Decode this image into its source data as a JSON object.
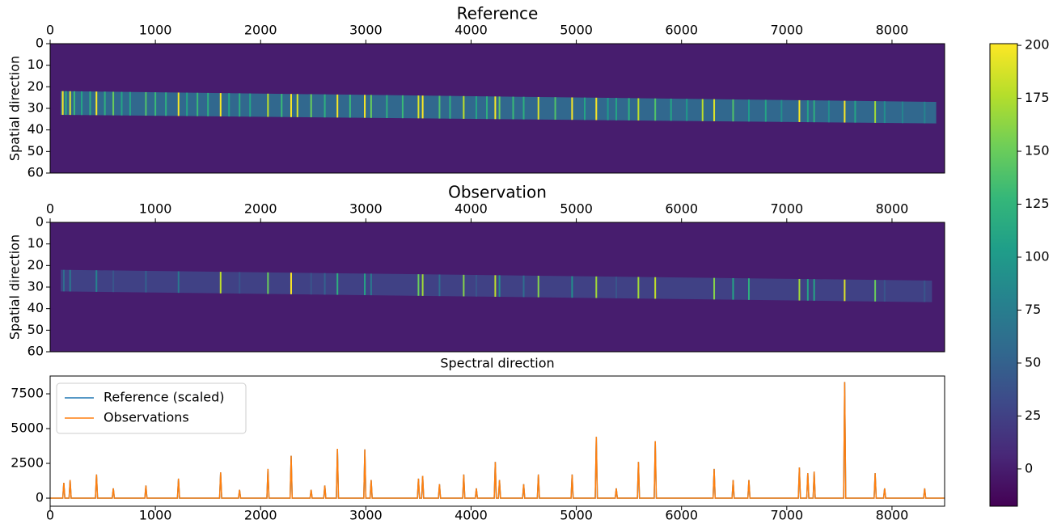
{
  "chart_data": [
    {
      "type": "image",
      "title": "Reference",
      "ylabel": "Spatial direction",
      "xlim": [
        0,
        8500
      ],
      "ylim": [
        60,
        0
      ],
      "xticks": [
        0,
        1000,
        2000,
        3000,
        4000,
        5000,
        6000,
        7000,
        8000
      ],
      "yticks": [
        0,
        10,
        20,
        30,
        40,
        50,
        60
      ],
      "background": 0,
      "band": {
        "x": [
          100,
          8420
        ],
        "top": [
          22,
          27
        ],
        "bottom": [
          33,
          37
        ],
        "level": 55
      },
      "lines": {
        "x": [
          120,
          150,
          190,
          230,
          300,
          380,
          440,
          520,
          600,
          680,
          760,
          910,
          1000,
          1100,
          1220,
          1300,
          1400,
          1500,
          1620,
          1700,
          1800,
          1900,
          2070,
          2200,
          2290,
          2350,
          2480,
          2610,
          2730,
          2850,
          2990,
          3050,
          3200,
          3350,
          3500,
          3540,
          3700,
          3800,
          3930,
          4050,
          4150,
          4230,
          4270,
          4400,
          4500,
          4640,
          4800,
          4960,
          5080,
          5190,
          5300,
          5380,
          5500,
          5590,
          5750,
          5900,
          6050,
          6200,
          6310,
          6490,
          6640,
          6800,
          6950,
          7120,
          7200,
          7260,
          7400,
          7550,
          7650,
          7840,
          7930,
          8100,
          8310
        ],
        "values": [
          200,
          120,
          190,
          130,
          110,
          120,
          200,
          120,
          150,
          110,
          110,
          140,
          130,
          120,
          200,
          110,
          130,
          120,
          200,
          110,
          120,
          110,
          180,
          130,
          200,
          190,
          150,
          120,
          200,
          130,
          200,
          150,
          120,
          130,
          190,
          200,
          140,
          120,
          180,
          110,
          120,
          200,
          150,
          130,
          120,
          190,
          140,
          200,
          110,
          200,
          100,
          110,
          120,
          180,
          140,
          110,
          100,
          180,
          190,
          140,
          100,
          110,
          90,
          200,
          110,
          120,
          90,
          200,
          110,
          170,
          90,
          80,
          80
        ]
      }
    },
    {
      "type": "image",
      "title": "Observation",
      "xlabel": "Spectral direction",
      "ylabel": "Spatial direction",
      "xlim": [
        0,
        8500
      ],
      "ylim": [
        60,
        0
      ],
      "xticks": [
        0,
        1000,
        2000,
        3000,
        4000,
        5000,
        6000,
        7000,
        8000
      ],
      "yticks": [
        0,
        10,
        20,
        30,
        40,
        50,
        60
      ],
      "background": 0,
      "band": {
        "x": [
          100,
          8380
        ],
        "top": [
          22,
          27
        ],
        "bottom": [
          32,
          37
        ],
        "level": 25
      },
      "lines": {
        "x": [
          130,
          190,
          440,
          600,
          910,
          1220,
          1620,
          1800,
          2070,
          2290,
          2480,
          2610,
          2730,
          2990,
          3050,
          3500,
          3540,
          3700,
          3930,
          4050,
          4230,
          4270,
          4500,
          4640,
          4960,
          5190,
          5380,
          5590,
          5750,
          6310,
          6490,
          6640,
          7120,
          7200,
          7260,
          7550,
          7840,
          7930,
          8310
        ],
        "values": [
          60,
          70,
          80,
          40,
          50,
          70,
          180,
          40,
          150,
          200,
          40,
          50,
          120,
          110,
          70,
          150,
          170,
          60,
          160,
          40,
          180,
          90,
          60,
          160,
          90,
          170,
          40,
          170,
          180,
          160,
          110,
          120,
          170,
          110,
          110,
          190,
          150,
          40,
          40
        ]
      }
    },
    {
      "type": "line",
      "xlim": [
        0,
        8500
      ],
      "ylim": [
        -580,
        8780
      ],
      "xticks": [
        0,
        1000,
        2000,
        3000,
        4000,
        5000,
        6000,
        7000,
        8000
      ],
      "yticks": [
        0,
        2500,
        5000,
        7500
      ],
      "legend": "upper left",
      "x": [
        0,
        120,
        130,
        140,
        180,
        190,
        200,
        430,
        440,
        450,
        590,
        600,
        610,
        900,
        910,
        920,
        1210,
        1220,
        1230,
        1610,
        1620,
        1630,
        1790,
        1800,
        1810,
        2060,
        2070,
        2080,
        2280,
        2290,
        2300,
        2470,
        2480,
        2490,
        2600,
        2610,
        2620,
        2720,
        2730,
        2740,
        2980,
        2990,
        3000,
        3040,
        3050,
        3060,
        3490,
        3500,
        3510,
        3530,
        3540,
        3550,
        3690,
        3700,
        3710,
        3920,
        3930,
        3940,
        4040,
        4050,
        4060,
        4220,
        4230,
        4240,
        4260,
        4270,
        4280,
        4490,
        4500,
        4510,
        4630,
        4640,
        4650,
        4950,
        4960,
        4970,
        5180,
        5190,
        5200,
        5370,
        5380,
        5390,
        5580,
        5590,
        5600,
        5740,
        5750,
        5760,
        6300,
        6310,
        6320,
        6480,
        6490,
        6500,
        6630,
        6640,
        6650,
        7110,
        7120,
        7130,
        7190,
        7200,
        7210,
        7250,
        7260,
        7270,
        7540,
        7550,
        7560,
        7830,
        7840,
        7850,
        7920,
        7930,
        7940,
        8300,
        8310,
        8320,
        8500
      ],
      "series": [
        {
          "name": "Reference (scaled)",
          "color": "#1f77b4",
          "values": [
            0,
            0,
            1100,
            0,
            0,
            1300,
            0,
            0,
            1700,
            0,
            0,
            700,
            0,
            0,
            900,
            0,
            0,
            1400,
            0,
            0,
            1850,
            0,
            0,
            600,
            0,
            0,
            2100,
            0,
            0,
            3050,
            0,
            0,
            600,
            0,
            0,
            900,
            0,
            0,
            3550,
            0,
            0,
            3500,
            0,
            0,
            1300,
            0,
            0,
            1400,
            0,
            0,
            1600,
            0,
            0,
            1000,
            0,
            0,
            1700,
            0,
            0,
            700,
            0,
            0,
            2600,
            0,
            0,
            1300,
            0,
            0,
            1000,
            0,
            0,
            1700,
            0,
            0,
            1700,
            0,
            0,
            4400,
            0,
            0,
            700,
            0,
            0,
            2600,
            0,
            0,
            4100,
            0,
            0,
            2100,
            0,
            0,
            1300,
            0,
            0,
            1300,
            0,
            0,
            2200,
            0,
            0,
            1800,
            0,
            0,
            1900,
            0,
            0,
            8350,
            0,
            0,
            1800,
            0,
            0,
            700,
            0,
            0,
            700,
            0,
            0
          ]
        },
        {
          "name": "Observations",
          "color": "#ff7f0e",
          "values": [
            0,
            0,
            1100,
            0,
            0,
            1300,
            0,
            0,
            1700,
            0,
            0,
            700,
            0,
            0,
            900,
            0,
            0,
            1400,
            0,
            0,
            1850,
            0,
            0,
            600,
            0,
            0,
            2100,
            0,
            0,
            3050,
            0,
            0,
            600,
            0,
            0,
            900,
            0,
            0,
            3550,
            0,
            0,
            3500,
            0,
            0,
            1300,
            0,
            0,
            1400,
            0,
            0,
            1600,
            0,
            0,
            1000,
            0,
            0,
            1700,
            0,
            0,
            700,
            0,
            0,
            2600,
            0,
            0,
            1300,
            0,
            0,
            1000,
            0,
            0,
            1700,
            0,
            0,
            1700,
            0,
            0,
            4400,
            0,
            0,
            700,
            0,
            0,
            2600,
            0,
            0,
            4100,
            0,
            0,
            2100,
            0,
            0,
            1300,
            0,
            0,
            1300,
            0,
            0,
            2200,
            0,
            0,
            1800,
            0,
            0,
            1900,
            0,
            0,
            8350,
            0,
            0,
            1800,
            0,
            0,
            700,
            0,
            0,
            700,
            0,
            0
          ]
        }
      ]
    },
    {
      "type": "colorbar",
      "lim": [
        -17.6,
        200.8
      ],
      "ticks": [
        0,
        25,
        50,
        75,
        100,
        125,
        150,
        175,
        200
      ]
    }
  ]
}
